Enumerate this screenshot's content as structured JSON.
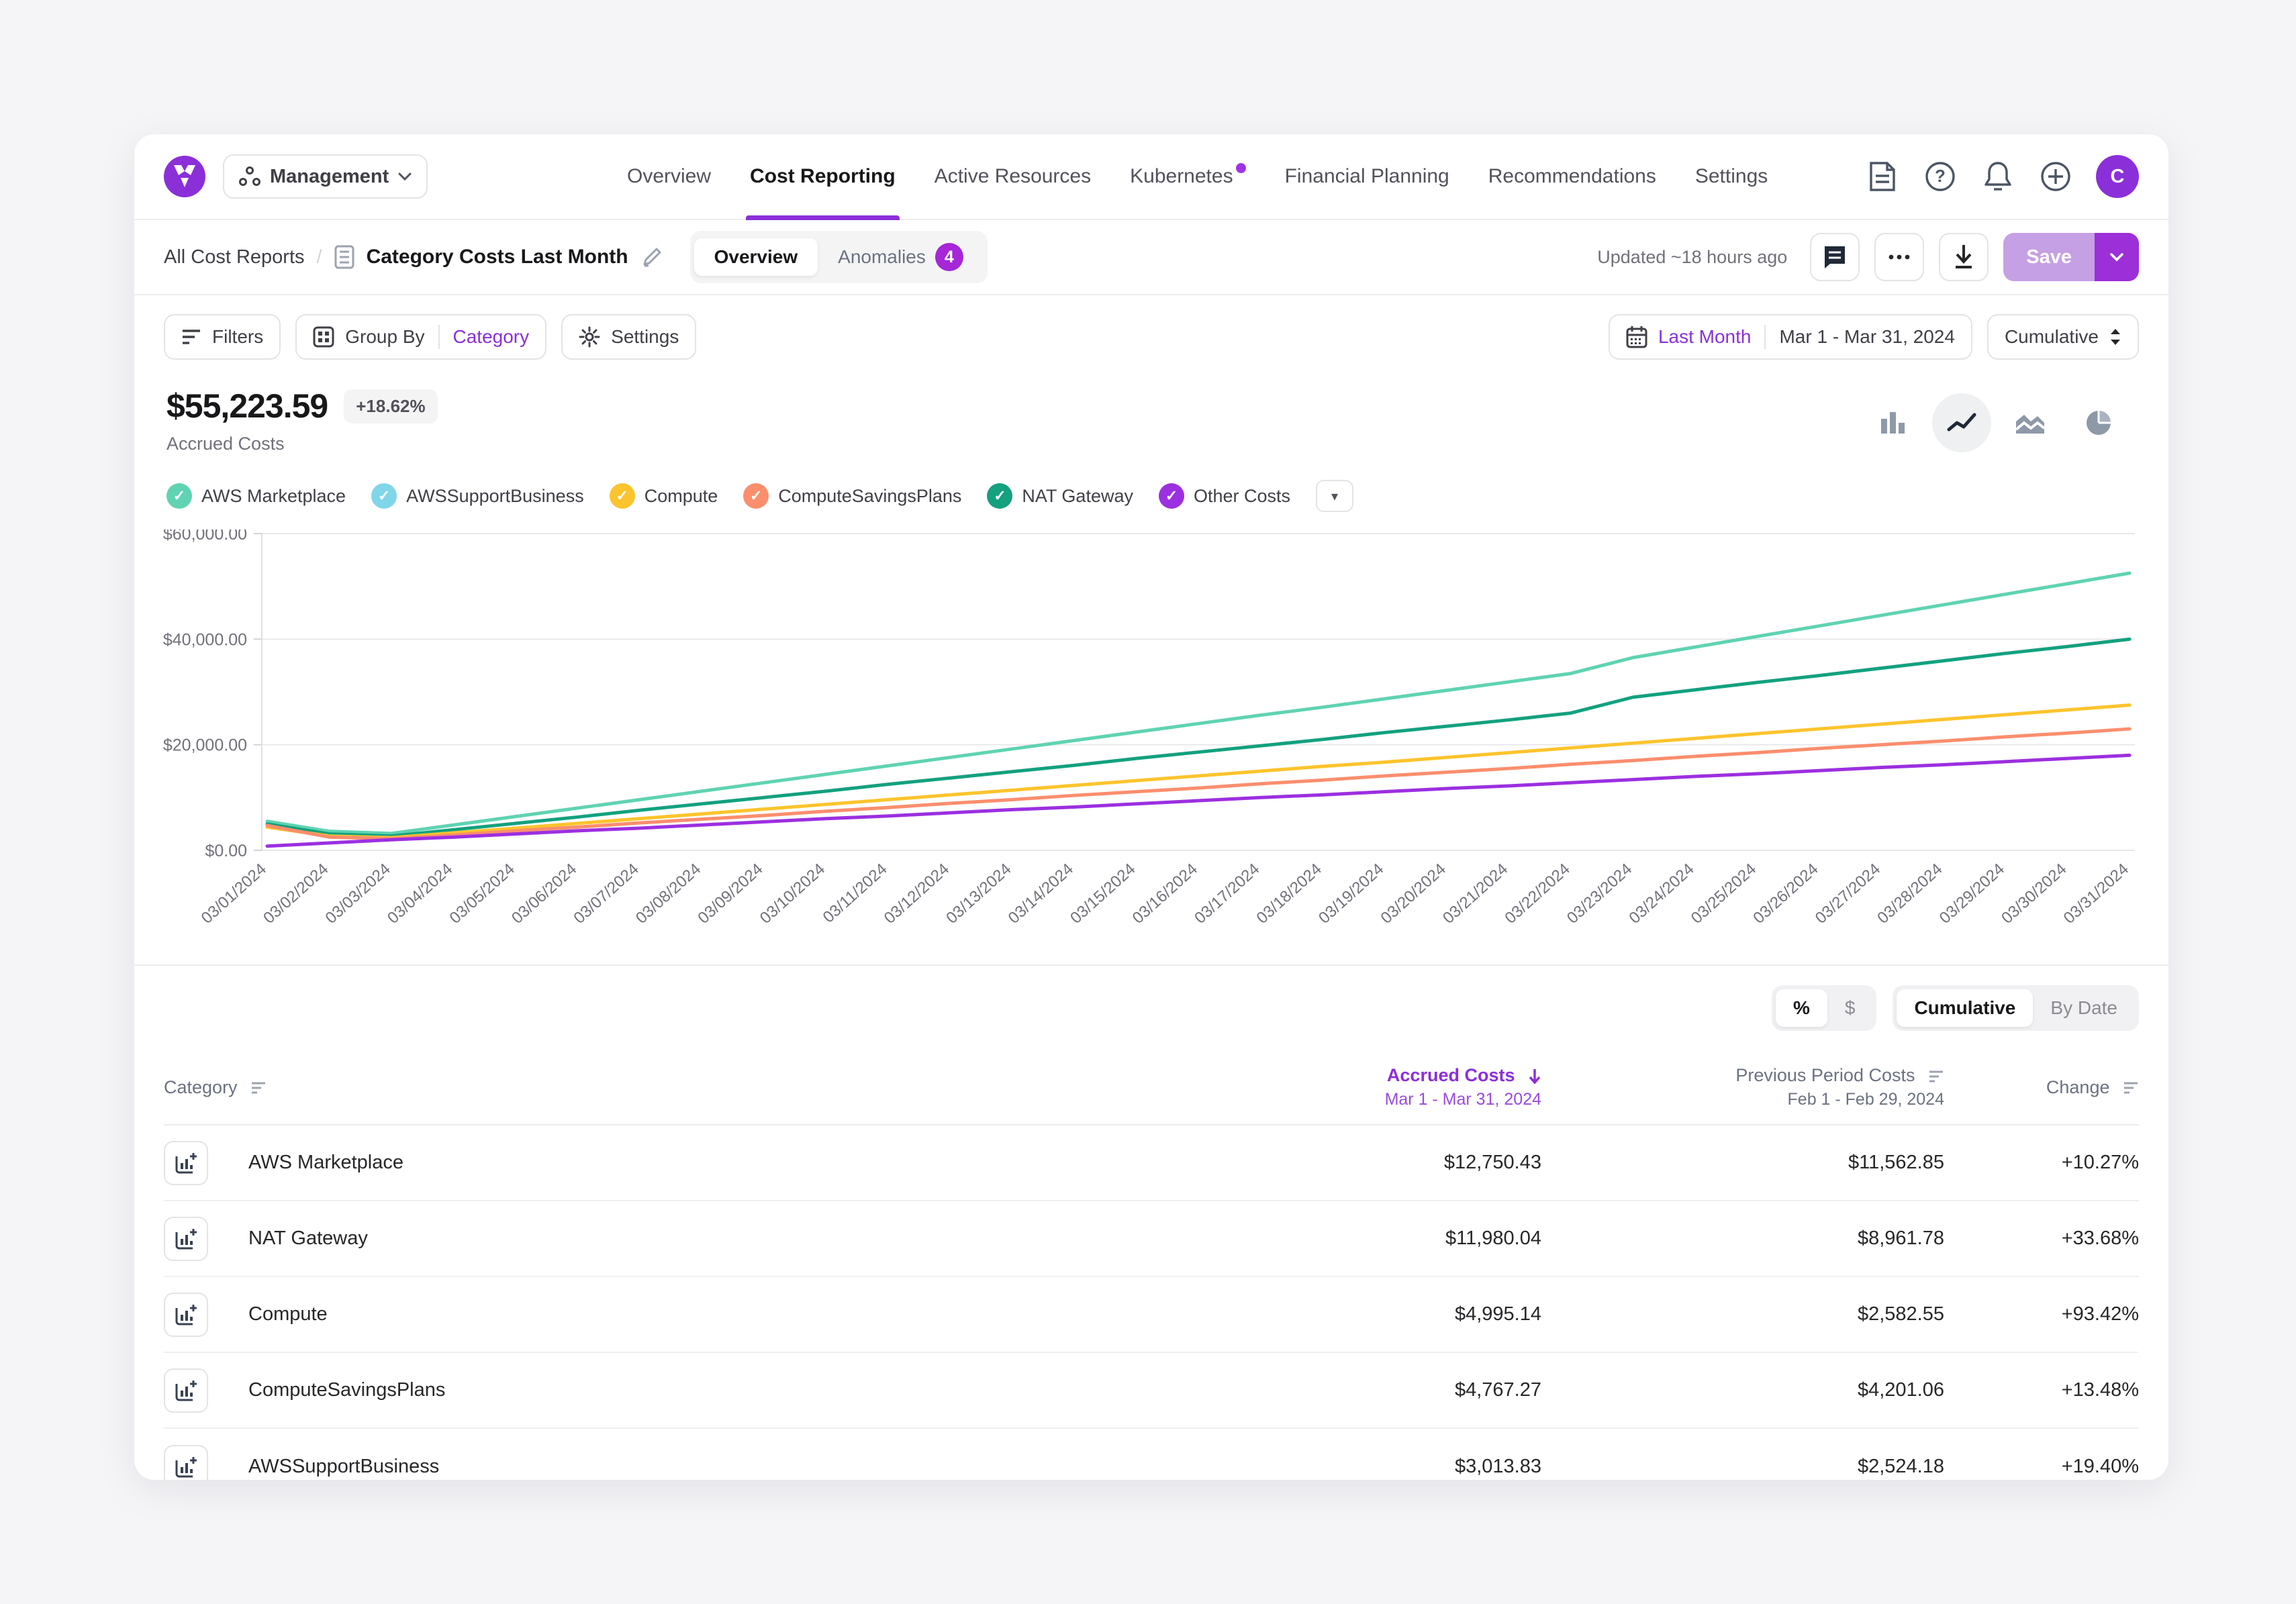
{
  "brand": {
    "logo_color": "#8b2fd9"
  },
  "top_nav": {
    "org_switcher": {
      "label": "Management"
    },
    "items": [
      {
        "label": "Overview",
        "active": false,
        "dot": false
      },
      {
        "label": "Cost Reporting",
        "active": true,
        "dot": false
      },
      {
        "label": "Active Resources",
        "active": false,
        "dot": false
      },
      {
        "label": "Kubernetes",
        "active": false,
        "dot": true
      },
      {
        "label": "Financial Planning",
        "active": false,
        "dot": false
      },
      {
        "label": "Recommendations",
        "active": false,
        "dot": false
      },
      {
        "label": "Settings",
        "active": false,
        "dot": false
      }
    ],
    "avatar_initial": "C"
  },
  "report_header": {
    "breadcrumb_root": "All Cost Reports",
    "breadcrumb_sep": "/",
    "title": "Category Costs Last Month",
    "tabs": [
      {
        "label": "Overview",
        "active": true,
        "badge": ""
      },
      {
        "label": "Anomalies",
        "active": false,
        "badge": "4"
      }
    ],
    "updated": "Updated ~18 hours ago",
    "save_label": "Save"
  },
  "toolbar": {
    "filters_label": "Filters",
    "group_by_label": "Group By",
    "group_by_value": "Category",
    "settings_label": "Settings",
    "date_preset": "Last Month",
    "date_range": "Mar 1 - Mar 31, 2024",
    "aggregation": "Cumulative"
  },
  "summary": {
    "total": "$55,223.59",
    "change_badge": "+18.62%",
    "subtitle": "Accrued Costs"
  },
  "legend": {
    "items": [
      {
        "label": "AWS Marketplace",
        "color": "#5fd3b2"
      },
      {
        "label": "AWSSupportBusiness",
        "color": "#7fd6e8"
      },
      {
        "label": "Compute",
        "color": "#fcc42d"
      },
      {
        "label": "ComputeSavingsPlans",
        "color": "#fb8e6d"
      },
      {
        "label": "NAT Gateway",
        "color": "#13a17e"
      },
      {
        "label": "Other Costs",
        "color": "#9c2fe0"
      }
    ]
  },
  "chart_data": {
    "type": "line",
    "mode": "cumulative-stacked",
    "title": "Accrued Costs — Cumulative, Mar 1 - Mar 31, 2024",
    "ylim": [
      0,
      60000
    ],
    "y_ticks": [
      "$0.00",
      "$20,000.00",
      "$40,000.00",
      "$60,000.00"
    ],
    "grid": true,
    "x": [
      "03/01/2024",
      "03/02/2024",
      "03/03/2024",
      "03/04/2024",
      "03/05/2024",
      "03/06/2024",
      "03/07/2024",
      "03/08/2024",
      "03/09/2024",
      "03/10/2024",
      "03/11/2024",
      "03/12/2024",
      "03/13/2024",
      "03/14/2024",
      "03/15/2024",
      "03/16/2024",
      "03/17/2024",
      "03/18/2024",
      "03/19/2024",
      "03/20/2024",
      "03/21/2024",
      "03/22/2024",
      "03/23/2024",
      "03/24/2024",
      "03/25/2024",
      "03/26/2024",
      "03/27/2024",
      "03/28/2024",
      "03/29/2024",
      "03/30/2024",
      "03/31/2024"
    ],
    "series": [
      {
        "name": "AWS Marketplace (stack top)",
        "color": "#5fd3b2",
        "values": [
          5500,
          3600,
          3200,
          4800,
          6400,
          8000,
          9600,
          11200,
          12800,
          14400,
          16000,
          17600,
          19200,
          20800,
          22400,
          24000,
          25600,
          27100,
          28700,
          30300,
          31900,
          33500,
          36500,
          38500,
          40500,
          42500,
          44500,
          46500,
          48500,
          50500,
          52500
        ]
      },
      {
        "name": "NAT Gateway",
        "color": "#13a17e",
        "values": [
          5000,
          3100,
          2700,
          3900,
          5100,
          6300,
          7600,
          8800,
          10000,
          11200,
          12500,
          13700,
          14900,
          16100,
          17400,
          18600,
          19800,
          21000,
          22300,
          23500,
          24700,
          26000,
          29000,
          30400,
          31800,
          33100,
          34500,
          35900,
          37300,
          38600,
          40000
        ]
      },
      {
        "name": "Compute",
        "color": "#fcc42d",
        "values": [
          4400,
          2700,
          2400,
          3300,
          4200,
          5100,
          6000,
          6900,
          7800,
          8700,
          9600,
          10500,
          11400,
          12300,
          13200,
          14100,
          15000,
          15900,
          16700,
          17600,
          18500,
          19400,
          20300,
          21200,
          22100,
          23000,
          23900,
          24800,
          25700,
          26600,
          27500
        ]
      },
      {
        "name": "ComputeSavingsPlans",
        "color": "#fb8e6d",
        "values": [
          4700,
          2500,
          2200,
          2900,
          3700,
          4400,
          5200,
          5900,
          6600,
          7400,
          8100,
          8900,
          9600,
          10400,
          11100,
          11800,
          12600,
          13300,
          14100,
          14800,
          15500,
          16300,
          17000,
          17800,
          18500,
          19300,
          20000,
          20700,
          21500,
          22200,
          23000
        ]
      },
      {
        "name": "Other Costs",
        "color": "#9c2fe0",
        "values": [
          800,
          1400,
          2000,
          2500,
          3100,
          3700,
          4200,
          4800,
          5400,
          6000,
          6500,
          7100,
          7700,
          8200,
          8800,
          9400,
          10000,
          10500,
          11100,
          11700,
          12200,
          12800,
          13400,
          14000,
          14500,
          15100,
          15700,
          16200,
          16800,
          17400,
          18000
        ]
      }
    ]
  },
  "table_controls": {
    "unit_toggle": [
      {
        "label": "%",
        "active": true
      },
      {
        "label": "$",
        "active": false
      }
    ],
    "mode_toggle": [
      {
        "label": "Cumulative",
        "active": true
      },
      {
        "label": "By Date",
        "active": false
      }
    ]
  },
  "table": {
    "columns": {
      "category": {
        "label": "Category"
      },
      "accrued": {
        "label": "Accrued Costs",
        "sub": "Mar 1 - Mar 31, 2024",
        "sorted_desc": true
      },
      "previous": {
        "label": "Previous Period Costs",
        "sub": "Feb 1 - Feb 29, 2024"
      },
      "change": {
        "label": "Change"
      }
    },
    "rows": [
      {
        "name": "AWS Marketplace",
        "accrued": "$12,750.43",
        "previous": "$11,562.85",
        "change": "+10.27%"
      },
      {
        "name": "NAT Gateway",
        "accrued": "$11,980.04",
        "previous": "$8,961.78",
        "change": "+33.68%"
      },
      {
        "name": "Compute",
        "accrued": "$4,995.14",
        "previous": "$2,582.55",
        "change": "+93.42%"
      },
      {
        "name": "ComputeSavingsPlans",
        "accrued": "$4,767.27",
        "previous": "$4,201.06",
        "change": "+13.48%"
      },
      {
        "name": "AWSSupportBusiness",
        "accrued": "$3,013.83",
        "previous": "$2,524.18",
        "change": "+19.40%"
      }
    ]
  }
}
